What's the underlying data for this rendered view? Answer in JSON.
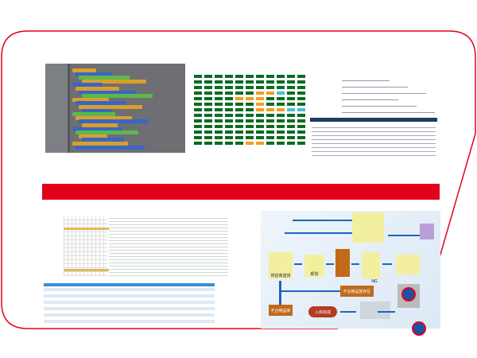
{
  "colors": {
    "frame": "#e2001a",
    "band": "#e2001a",
    "dot": "#1b53a6",
    "grid_ok": "#0c6b23",
    "grid_warn": "#f0a020",
    "grid_info": "#48c0d8",
    "grid_alert": "#e84a1a"
  },
  "flowchart": {
    "supplier": "供应商送货",
    "unload": "卸货",
    "ng": "NG",
    "ng_temp": "不合格品暂存区",
    "ng_store": "不合格品库",
    "done": "入库完成"
  }
}
